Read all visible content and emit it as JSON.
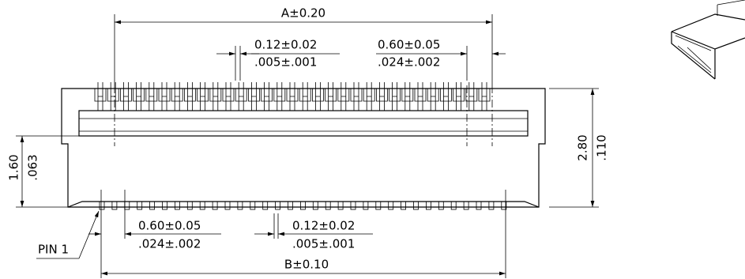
{
  "dimensions": {
    "a": "A±0.20",
    "top_pin_width": {
      "mm": "0.12±0.02",
      "in": ".005±.001"
    },
    "top_pitch": {
      "mm": "0.60±0.05",
      "in": ".024±.002"
    },
    "height_low": {
      "mm": "1.60",
      "in": ".063"
    },
    "height": {
      "mm": "2.80",
      "in": ".110"
    },
    "bottom_pitch": {
      "mm": "0.60±0.05",
      "in": ".024±.002"
    },
    "bottom_pin_width": {
      "mm": "0.12±0.02",
      "in": ".005±.001"
    },
    "b": "B±0.10"
  },
  "pin_label": "PIN 1"
}
